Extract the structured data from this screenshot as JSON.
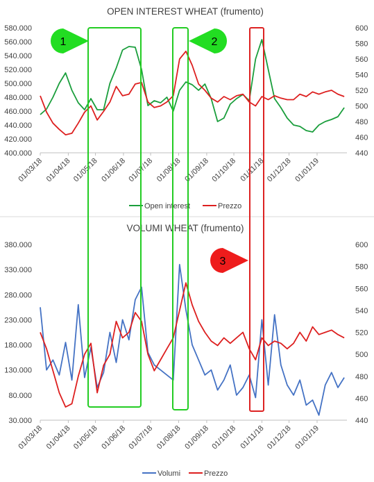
{
  "chart_data": [
    {
      "type": "line",
      "title": "OPEN INTEREST WHEAT (frumento)",
      "x_tick_labels": [
        "01/03/18",
        "01/04/18",
        "01/05/18",
        "01/06/18",
        "01/07/18",
        "01/08/18",
        "01/09/18",
        "01/10/18",
        "01/11/18",
        "01/12/18",
        "01/01/19"
      ],
      "y_left_ticks": [
        "400.000",
        "420.000",
        "440.000",
        "460.000",
        "480.000",
        "500.000",
        "520.000",
        "540.000",
        "560.000",
        "580.000"
      ],
      "y_left_range": [
        400000,
        580000
      ],
      "y_right_ticks": [
        "440",
        "460",
        "480",
        "500",
        "520",
        "540",
        "560",
        "580",
        "600"
      ],
      "y_right_range": [
        440,
        600
      ],
      "legend_position": "bottom",
      "series": [
        {
          "name": "Open interest",
          "axis": "left",
          "color": "#1a9e3c",
          "points": [
            [
              "2018-03-01",
              455000
            ],
            [
              "2018-03-08",
              463000
            ],
            [
              "2018-03-15",
              480000
            ],
            [
              "2018-03-22",
              500000
            ],
            [
              "2018-03-29",
              515000
            ],
            [
              "2018-04-05",
              490000
            ],
            [
              "2018-04-12",
              472000
            ],
            [
              "2018-04-19",
              462000
            ],
            [
              "2018-04-26",
              478000
            ],
            [
              "2018-05-03",
              462000
            ],
            [
              "2018-05-10",
              462000
            ],
            [
              "2018-05-17",
              500000
            ],
            [
              "2018-05-24",
              522000
            ],
            [
              "2018-05-31",
              548000
            ],
            [
              "2018-06-07",
              553000
            ],
            [
              "2018-06-14",
              552000
            ],
            [
              "2018-06-21",
              520000
            ],
            [
              "2018-06-28",
              468000
            ],
            [
              "2018-07-05",
              475000
            ],
            [
              "2018-07-12",
              472000
            ],
            [
              "2018-07-19",
              480000
            ],
            [
              "2018-07-26",
              460000
            ],
            [
              "2018-08-02",
              490000
            ],
            [
              "2018-08-09",
              502000
            ],
            [
              "2018-08-16",
              498000
            ],
            [
              "2018-08-23",
              490000
            ],
            [
              "2018-08-30",
              499000
            ],
            [
              "2018-09-06",
              478000
            ],
            [
              "2018-09-13",
              445000
            ],
            [
              "2018-09-20",
              450000
            ],
            [
              "2018-09-27",
              470000
            ],
            [
              "2018-10-04",
              478000
            ],
            [
              "2018-10-11",
              484000
            ],
            [
              "2018-10-18",
              475000
            ],
            [
              "2018-10-25",
              535000
            ],
            [
              "2018-11-01",
              563000
            ],
            [
              "2018-11-08",
              520000
            ],
            [
              "2018-11-15",
              478000
            ],
            [
              "2018-11-22",
              465000
            ],
            [
              "2018-11-29",
              450000
            ],
            [
              "2018-12-06",
              440000
            ],
            [
              "2018-12-13",
              438000
            ],
            [
              "2018-12-20",
              432000
            ],
            [
              "2018-12-27",
              430000
            ],
            [
              "2019-01-03",
              440000
            ],
            [
              "2019-01-10",
              445000
            ],
            [
              "2019-01-17",
              448000
            ],
            [
              "2019-01-24",
              452000
            ],
            [
              "2019-01-31",
              465000
            ]
          ]
        },
        {
          "name": "Prezzo",
          "axis": "right",
          "color": "#dd1f1f",
          "points": [
            [
              "2018-03-01",
              513
            ],
            [
              "2018-03-08",
              492
            ],
            [
              "2018-03-15",
              478
            ],
            [
              "2018-03-22",
              470
            ],
            [
              "2018-03-29",
              463
            ],
            [
              "2018-04-05",
              465
            ],
            [
              "2018-04-12",
              478
            ],
            [
              "2018-04-19",
              492
            ],
            [
              "2018-04-26",
              500
            ],
            [
              "2018-05-03",
              482
            ],
            [
              "2018-05-10",
              493
            ],
            [
              "2018-05-17",
              505
            ],
            [
              "2018-05-24",
              525
            ],
            [
              "2018-05-31",
              513
            ],
            [
              "2018-06-07",
              515
            ],
            [
              "2018-06-14",
              528
            ],
            [
              "2018-06-21",
              530
            ],
            [
              "2018-06-28",
              505
            ],
            [
              "2018-07-05",
              498
            ],
            [
              "2018-07-12",
              500
            ],
            [
              "2018-07-19",
              505
            ],
            [
              "2018-07-26",
              513
            ],
            [
              "2018-08-02",
              560
            ],
            [
              "2018-08-09",
              570
            ],
            [
              "2018-08-16",
              552
            ],
            [
              "2018-08-23",
              528
            ],
            [
              "2018-08-30",
              520
            ],
            [
              "2018-09-06",
              510
            ],
            [
              "2018-09-13",
              505
            ],
            [
              "2018-09-20",
              512
            ],
            [
              "2018-09-27",
              508
            ],
            [
              "2018-10-04",
              513
            ],
            [
              "2018-10-11",
              515
            ],
            [
              "2018-10-18",
              505
            ],
            [
              "2018-10-25",
              500
            ],
            [
              "2018-11-01",
              512
            ],
            [
              "2018-11-08",
              508
            ],
            [
              "2018-11-15",
              513
            ],
            [
              "2018-11-22",
              510
            ],
            [
              "2018-11-29",
              508
            ],
            [
              "2018-12-06",
              508
            ],
            [
              "2018-12-13",
              515
            ],
            [
              "2018-12-20",
              512
            ],
            [
              "2018-12-27",
              518
            ],
            [
              "2019-01-03",
              515
            ],
            [
              "2019-01-10",
              518
            ],
            [
              "2019-01-17",
              520
            ],
            [
              "2019-01-24",
              515
            ],
            [
              "2019-01-31",
              512
            ]
          ]
        }
      ]
    },
    {
      "type": "line",
      "title": "VOLUMI WHEAT (frumento)",
      "x_tick_labels": [
        "01/03/18",
        "01/04/18",
        "01/05/18",
        "01/06/18",
        "01/07/18",
        "01/08/18",
        "01/09/18",
        "01/10/18",
        "01/11/18",
        "01/12/18",
        "01/01/19"
      ],
      "y_left_ticks": [
        "30.000",
        "80.000",
        "130.000",
        "180.000",
        "230.000",
        "280.000",
        "330.000",
        "380.000"
      ],
      "y_left_range": [
        30000,
        380000
      ],
      "y_right_ticks": [
        "440",
        "460",
        "480",
        "500",
        "520",
        "540",
        "560",
        "580",
        "600"
      ],
      "y_right_range": [
        440,
        600
      ],
      "legend_position": "bottom",
      "series": [
        {
          "name": "Volumi",
          "axis": "left",
          "color": "#4472c4",
          "points": [
            [
              "2018-03-01",
              255000
            ],
            [
              "2018-03-08",
              130000
            ],
            [
              "2018-03-15",
              150000
            ],
            [
              "2018-03-22",
              120000
            ],
            [
              "2018-03-29",
              185000
            ],
            [
              "2018-04-05",
              110000
            ],
            [
              "2018-04-12",
              260000
            ],
            [
              "2018-04-19",
              115000
            ],
            [
              "2018-04-26",
              175000
            ],
            [
              "2018-05-03",
              95000
            ],
            [
              "2018-05-10",
              125000
            ],
            [
              "2018-05-17",
              205000
            ],
            [
              "2018-05-24",
              145000
            ],
            [
              "2018-05-31",
              230000
            ],
            [
              "2018-06-07",
              190000
            ],
            [
              "2018-06-14",
              270000
            ],
            [
              "2018-06-21",
              295000
            ],
            [
              "2018-06-28",
              165000
            ],
            [
              "2018-07-05",
              140000
            ],
            [
              "2018-07-12",
              130000
            ],
            [
              "2018-07-19",
              120000
            ],
            [
              "2018-07-26",
              110000
            ],
            [
              "2018-08-02",
              340000
            ],
            [
              "2018-08-09",
              250000
            ],
            [
              "2018-08-16",
              180000
            ],
            [
              "2018-08-23",
              150000
            ],
            [
              "2018-08-30",
              120000
            ],
            [
              "2018-09-06",
              130000
            ],
            [
              "2018-09-13",
              90000
            ],
            [
              "2018-09-20",
              110000
            ],
            [
              "2018-09-27",
              140000
            ],
            [
              "2018-10-04",
              80000
            ],
            [
              "2018-10-11",
              95000
            ],
            [
              "2018-10-18",
              120000
            ],
            [
              "2018-10-25",
              75000
            ],
            [
              "2018-11-01",
              230000
            ],
            [
              "2018-11-08",
              100000
            ],
            [
              "2018-11-15",
              240000
            ],
            [
              "2018-11-22",
              140000
            ],
            [
              "2018-11-29",
              100000
            ],
            [
              "2018-12-06",
              80000
            ],
            [
              "2018-12-13",
              110000
            ],
            [
              "2018-12-20",
              60000
            ],
            [
              "2018-12-27",
              70000
            ],
            [
              "2019-01-03",
              40000
            ],
            [
              "2019-01-10",
              100000
            ],
            [
              "2019-01-17",
              125000
            ],
            [
              "2019-01-24",
              95000
            ],
            [
              "2019-01-31",
              115000
            ]
          ]
        },
        {
          "name": "Prezzo",
          "axis": "right",
          "color": "#dd1f1f",
          "points": [
            [
              "2018-03-01",
              520
            ],
            [
              "2018-03-08",
              505
            ],
            [
              "2018-03-15",
              485
            ],
            [
              "2018-03-22",
              465
            ],
            [
              "2018-03-29",
              452
            ],
            [
              "2018-04-05",
              455
            ],
            [
              "2018-04-12",
              480
            ],
            [
              "2018-04-19",
              500
            ],
            [
              "2018-04-26",
              510
            ],
            [
              "2018-05-03",
              465
            ],
            [
              "2018-05-10",
              490
            ],
            [
              "2018-05-17",
              500
            ],
            [
              "2018-05-24",
              530
            ],
            [
              "2018-05-31",
              515
            ],
            [
              "2018-06-07",
              520
            ],
            [
              "2018-06-14",
              538
            ],
            [
              "2018-06-21",
              530
            ],
            [
              "2018-06-28",
              500
            ],
            [
              "2018-07-05",
              485
            ],
            [
              "2018-07-12",
              495
            ],
            [
              "2018-07-19",
              505
            ],
            [
              "2018-07-26",
              515
            ],
            [
              "2018-08-02",
              540
            ],
            [
              "2018-08-09",
              565
            ],
            [
              "2018-08-16",
              545
            ],
            [
              "2018-08-23",
              530
            ],
            [
              "2018-08-30",
              520
            ],
            [
              "2018-09-06",
              512
            ],
            [
              "2018-09-13",
              508
            ],
            [
              "2018-09-20",
              515
            ],
            [
              "2018-09-27",
              510
            ],
            [
              "2018-10-04",
              515
            ],
            [
              "2018-10-11",
              520
            ],
            [
              "2018-10-18",
              505
            ],
            [
              "2018-10-25",
              495
            ],
            [
              "2018-11-01",
              515
            ],
            [
              "2018-11-08",
              508
            ],
            [
              "2018-11-15",
              512
            ],
            [
              "2018-11-22",
              510
            ],
            [
              "2018-11-29",
              505
            ],
            [
              "2018-12-06",
              510
            ],
            [
              "2018-12-13",
              520
            ],
            [
              "2018-12-20",
              512
            ],
            [
              "2018-12-27",
              525
            ],
            [
              "2019-01-03",
              518
            ],
            [
              "2019-01-10",
              520
            ],
            [
              "2019-01-17",
              522
            ],
            [
              "2019-01-24",
              518
            ],
            [
              "2019-01-31",
              515
            ]
          ]
        }
      ]
    }
  ],
  "annotations": {
    "badges": [
      {
        "label": "1",
        "color": "#22dd22"
      },
      {
        "label": "2",
        "color": "#22dd22"
      },
      {
        "label": "3",
        "color": "#ee1c1c"
      }
    ],
    "highlight_boxes": [
      {
        "color": "#22cc22",
        "from": "2018-04-24",
        "to": "2018-06-28"
      },
      {
        "color": "#22cc22",
        "from": "2018-07-28",
        "to": "2018-08-10"
      },
      {
        "color": "#dd2222",
        "from": "2018-10-19",
        "to": "2018-11-01"
      }
    ]
  }
}
